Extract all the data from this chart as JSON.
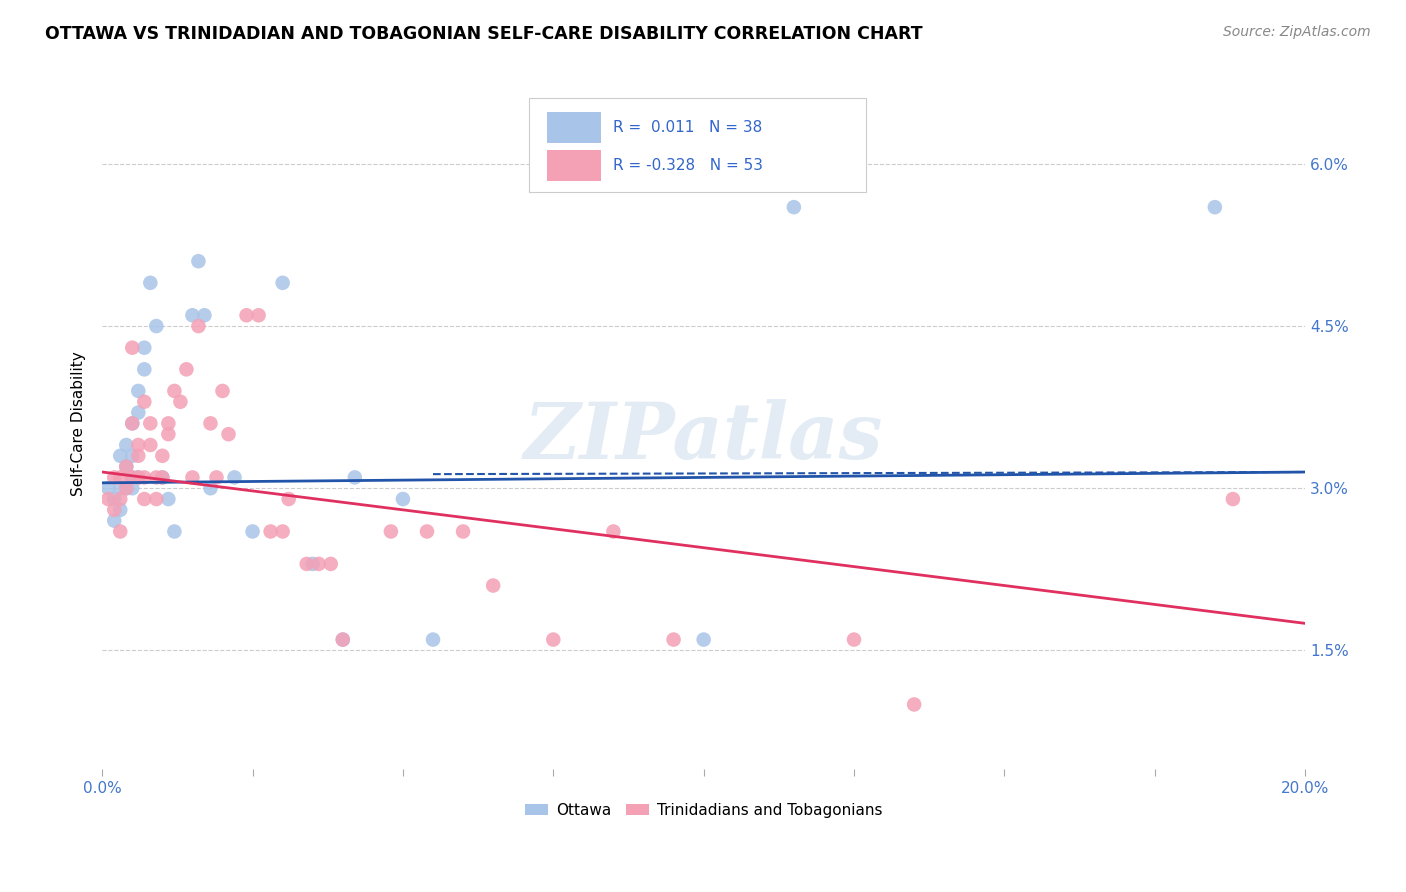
{
  "title": "OTTAWA VS TRINIDADIAN AND TOBAGONIAN SELF-CARE DISABILITY CORRELATION CHART",
  "source": "Source: ZipAtlas.com",
  "ylabel": "Self-Care Disability",
  "yticks": [
    "1.5%",
    "3.0%",
    "4.5%",
    "6.0%"
  ],
  "ytick_vals": [
    0.015,
    0.03,
    0.045,
    0.06
  ],
  "xmin": 0.0,
  "xmax": 0.2,
  "ymin": 0.004,
  "ymax": 0.068,
  "r_ottawa": 0.011,
  "n_ottawa": 38,
  "r_trinidad": -0.328,
  "n_trinidad": 53,
  "legend_labels": [
    "Ottawa",
    "Trinidadians and Tobagonians"
  ],
  "color_ottawa": "#a8c4e8",
  "color_trinidad": "#f4a0b5",
  "line_color_ottawa": "#2255aa",
  "line_color_trinidad": "#e03060",
  "watermark_text": "ZIPatlas",
  "ottawa_x": [
    0.001,
    0.002,
    0.002,
    0.003,
    0.003,
    0.003,
    0.004,
    0.004,
    0.004,
    0.005,
    0.005,
    0.005,
    0.005,
    0.006,
    0.006,
    0.006,
    0.007,
    0.007,
    0.008,
    0.009,
    0.01,
    0.011,
    0.012,
    0.015,
    0.016,
    0.017,
    0.018,
    0.022,
    0.025,
    0.03,
    0.035,
    0.04,
    0.042,
    0.05,
    0.055,
    0.1,
    0.115,
    0.185
  ],
  "ottawa_y": [
    0.03,
    0.029,
    0.027,
    0.033,
    0.03,
    0.028,
    0.034,
    0.032,
    0.03,
    0.036,
    0.033,
    0.031,
    0.03,
    0.039,
    0.037,
    0.031,
    0.043,
    0.041,
    0.049,
    0.045,
    0.031,
    0.029,
    0.026,
    0.046,
    0.051,
    0.046,
    0.03,
    0.031,
    0.026,
    0.049,
    0.023,
    0.016,
    0.031,
    0.029,
    0.016,
    0.016,
    0.056,
    0.056
  ],
  "trinidad_x": [
    0.001,
    0.002,
    0.002,
    0.003,
    0.003,
    0.003,
    0.004,
    0.004,
    0.005,
    0.005,
    0.005,
    0.006,
    0.006,
    0.006,
    0.007,
    0.007,
    0.007,
    0.008,
    0.008,
    0.009,
    0.009,
    0.01,
    0.01,
    0.011,
    0.011,
    0.012,
    0.013,
    0.014,
    0.015,
    0.016,
    0.018,
    0.019,
    0.02,
    0.021,
    0.024,
    0.026,
    0.028,
    0.03,
    0.031,
    0.034,
    0.036,
    0.038,
    0.04,
    0.048,
    0.054,
    0.06,
    0.065,
    0.075,
    0.085,
    0.095,
    0.125,
    0.135,
    0.188
  ],
  "trinidad_y": [
    0.029,
    0.031,
    0.028,
    0.026,
    0.029,
    0.031,
    0.032,
    0.03,
    0.036,
    0.043,
    0.031,
    0.031,
    0.033,
    0.034,
    0.031,
    0.029,
    0.038,
    0.036,
    0.034,
    0.029,
    0.031,
    0.031,
    0.033,
    0.036,
    0.035,
    0.039,
    0.038,
    0.041,
    0.031,
    0.045,
    0.036,
    0.031,
    0.039,
    0.035,
    0.046,
    0.046,
    0.026,
    0.026,
    0.029,
    0.023,
    0.023,
    0.023,
    0.016,
    0.026,
    0.026,
    0.026,
    0.021,
    0.016,
    0.026,
    0.016,
    0.016,
    0.01,
    0.029
  ]
}
